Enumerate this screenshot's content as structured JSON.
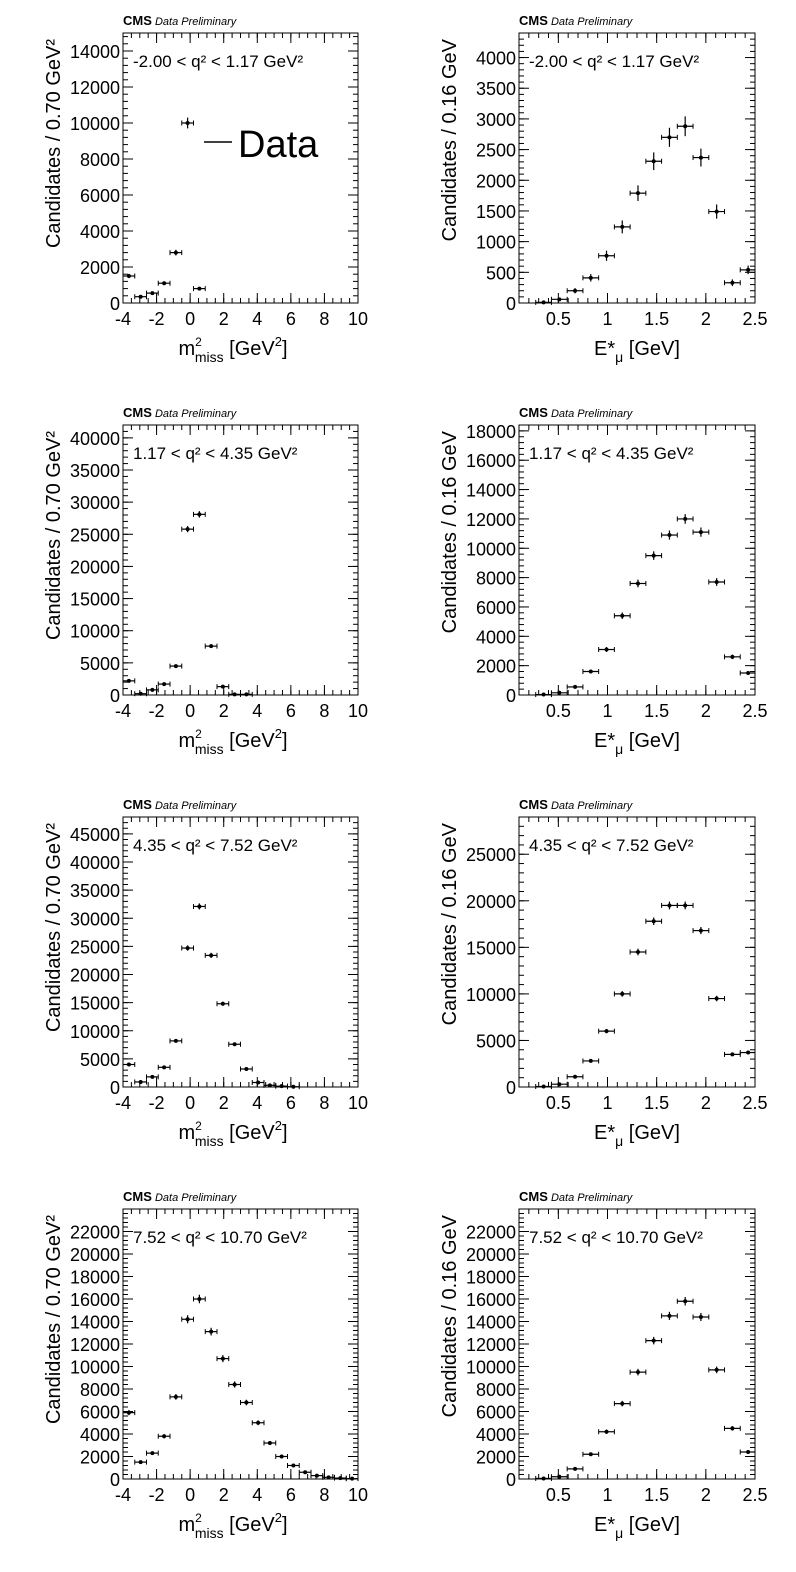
{
  "figure": {
    "experiment_label": "CMS",
    "status_label": "Data Preliminary",
    "legend_label": "Data"
  },
  "chart_data": [
    {
      "type": "scatter",
      "variable": "mmiss",
      "q2_text": "-2.00 <  q² < 1.17 GeV²",
      "xlabel_main": "m",
      "xlabel_sup": "2",
      "xlabel_sub": "miss",
      "xlabel_unit": " [GeV",
      "xlabel_unit_sup": "2",
      "xlabel_close": "]",
      "ylabel": "Candidates / 0.70 GeV²",
      "xlim": [
        -4,
        10
      ],
      "ylim": [
        0,
        15000
      ],
      "xticks": [
        -4,
        -2,
        0,
        2,
        4,
        6,
        8,
        10
      ],
      "yticks": [
        0,
        2000,
        4000,
        6000,
        8000,
        10000,
        12000,
        14000
      ],
      "bin_halfwidth": 0.35,
      "series": [
        {
          "name": "Data",
          "x": [
            -3.65,
            -2.95,
            -2.25,
            -1.55,
            -0.85,
            -0.15,
            0.55
          ],
          "y": [
            1500,
            350,
            550,
            1100,
            2800,
            10000,
            800
          ]
        }
      ]
    },
    {
      "type": "scatter",
      "variable": "emu",
      "q2_text": "-2.00 <  q² < 1.17 GeV²",
      "xlabel_main": "E*",
      "xlabel_sup": "",
      "xlabel_sub": "μ",
      "xlabel_unit": " [GeV]",
      "xlabel_unit_sup": "",
      "xlabel_close": "",
      "ylabel": "Candidates / 0.16 GeV",
      "xlim": [
        0.1,
        2.5
      ],
      "ylim": [
        0,
        4400
      ],
      "xticks": [
        0.5,
        1,
        1.5,
        2,
        2.5
      ],
      "yticks": [
        0,
        500,
        1000,
        1500,
        2000,
        2500,
        3000,
        3500,
        4000
      ],
      "bin_halfwidth": 0.08,
      "series": [
        {
          "name": "Data",
          "x": [
            0.35,
            0.51,
            0.67,
            0.83,
            0.99,
            1.15,
            1.31,
            1.47,
            1.63,
            1.79,
            1.95,
            2.11,
            2.27,
            2.43
          ],
          "y": [
            10,
            60,
            200,
            410,
            770,
            1240,
            1790,
            2310,
            2700,
            2880,
            2370,
            1490,
            330,
            540
          ]
        }
      ]
    },
    {
      "type": "scatter",
      "variable": "mmiss",
      "q2_text": "1.17 <  q² < 4.35 GeV²",
      "xlabel_main": "m",
      "xlabel_sup": "2",
      "xlabel_sub": "miss",
      "xlabel_unit": " [GeV",
      "xlabel_unit_sup": "2",
      "xlabel_close": "]",
      "ylabel": "Candidates / 0.70 GeV²",
      "xlim": [
        -4,
        10
      ],
      "ylim": [
        0,
        42000
      ],
      "xticks": [
        -4,
        -2,
        0,
        2,
        4,
        6,
        8,
        10
      ],
      "yticks": [
        0,
        5000,
        10000,
        15000,
        20000,
        25000,
        30000,
        35000,
        40000
      ],
      "bin_halfwidth": 0.35,
      "series": [
        {
          "name": "Data",
          "x": [
            -3.65,
            -2.95,
            -2.25,
            -1.55,
            -0.85,
            -0.15,
            0.55,
            1.25,
            1.95,
            2.65,
            3.35
          ],
          "y": [
            2200,
            200,
            800,
            1700,
            4500,
            25800,
            28100,
            7600,
            1300,
            100,
            100
          ]
        }
      ]
    },
    {
      "type": "scatter",
      "variable": "emu",
      "q2_text": "1.17 <  q² < 4.35 GeV²",
      "xlabel_main": "E*",
      "xlabel_sup": "",
      "xlabel_sub": "μ",
      "xlabel_unit": " [GeV]",
      "xlabel_unit_sup": "",
      "xlabel_close": "",
      "ylabel": "Candidates / 0.16 GeV",
      "xlim": [
        0.1,
        2.5
      ],
      "ylim": [
        0,
        18400
      ],
      "xticks": [
        0.5,
        1,
        1.5,
        2,
        2.5
      ],
      "yticks": [
        0,
        2000,
        4000,
        6000,
        8000,
        10000,
        12000,
        14000,
        16000,
        18000
      ],
      "bin_halfwidth": 0.08,
      "series": [
        {
          "name": "Data",
          "x": [
            0.35,
            0.51,
            0.67,
            0.83,
            0.99,
            1.15,
            1.31,
            1.47,
            1.63,
            1.79,
            1.95,
            2.11,
            2.27,
            2.43
          ],
          "y": [
            30,
            150,
            550,
            1600,
            3100,
            5400,
            7600,
            9500,
            10900,
            12000,
            11100,
            7700,
            2600,
            1500
          ]
        }
      ]
    },
    {
      "type": "scatter",
      "variable": "mmiss",
      "q2_text": "4.35 <  q² < 7.52 GeV²",
      "xlabel_main": "m",
      "xlabel_sup": "2",
      "xlabel_sub": "miss",
      "xlabel_unit": " [GeV",
      "xlabel_unit_sup": "2",
      "xlabel_close": "]",
      "ylabel": "Candidates / 0.70 GeV²",
      "xlim": [
        -4,
        10
      ],
      "ylim": [
        0,
        48000
      ],
      "xticks": [
        -4,
        -2,
        0,
        2,
        4,
        6,
        8,
        10
      ],
      "yticks": [
        0,
        5000,
        10000,
        15000,
        20000,
        25000,
        30000,
        35000,
        40000,
        45000
      ],
      "bin_halfwidth": 0.35,
      "series": [
        {
          "name": "Data",
          "x": [
            -3.65,
            -2.95,
            -2.25,
            -1.55,
            -0.85,
            -0.15,
            0.55,
            1.25,
            1.95,
            2.65,
            3.35,
            4.05,
            4.75,
            5.45,
            6.15
          ],
          "y": [
            4000,
            900,
            1800,
            3500,
            8200,
            24700,
            32100,
            23400,
            14800,
            7600,
            3200,
            800,
            300,
            150,
            50
          ]
        }
      ]
    },
    {
      "type": "scatter",
      "variable": "emu",
      "q2_text": "4.35 <  q² < 7.52 GeV²",
      "xlabel_main": "E*",
      "xlabel_sup": "",
      "xlabel_sub": "μ",
      "xlabel_unit": " [GeV]",
      "xlabel_unit_sup": "",
      "xlabel_close": "",
      "ylabel": "Candidates / 0.16 GeV",
      "xlim": [
        0.1,
        2.5
      ],
      "ylim": [
        0,
        29000
      ],
      "xticks": [
        0.5,
        1,
        1.5,
        2,
        2.5
      ],
      "yticks": [
        0,
        5000,
        10000,
        15000,
        20000,
        25000
      ],
      "bin_halfwidth": 0.08,
      "series": [
        {
          "name": "Data",
          "x": [
            0.35,
            0.51,
            0.67,
            0.83,
            0.99,
            1.15,
            1.31,
            1.47,
            1.63,
            1.79,
            1.95,
            2.11,
            2.27,
            2.43
          ],
          "y": [
            50,
            300,
            1100,
            2800,
            6000,
            10000,
            14500,
            17800,
            19500,
            19500,
            16800,
            9500,
            3500,
            3700
          ]
        }
      ]
    },
    {
      "type": "scatter",
      "variable": "mmiss",
      "q2_text": "7.52 <  q² < 10.70 GeV²",
      "xlabel_main": "m",
      "xlabel_sup": "2",
      "xlabel_sub": "miss",
      "xlabel_unit": " [GeV",
      "xlabel_unit_sup": "2",
      "xlabel_close": "]",
      "ylabel": "Candidates / 0.70 GeV²",
      "xlim": [
        -4,
        10
      ],
      "ylim": [
        0,
        24000
      ],
      "xticks": [
        -4,
        -2,
        0,
        2,
        4,
        6,
        8,
        10
      ],
      "yticks": [
        0,
        2000,
        4000,
        6000,
        8000,
        10000,
        12000,
        14000,
        16000,
        18000,
        20000,
        22000
      ],
      "bin_halfwidth": 0.35,
      "series": [
        {
          "name": "Data",
          "x": [
            -3.65,
            -2.95,
            -2.25,
            -1.55,
            -0.85,
            -0.15,
            0.55,
            1.25,
            1.95,
            2.65,
            3.35,
            4.05,
            4.75,
            5.45,
            6.15,
            6.85,
            7.55,
            8.25,
            8.95,
            9.65
          ],
          "y": [
            5900,
            1500,
            2300,
            3800,
            7300,
            14200,
            16000,
            13100,
            10700,
            8400,
            6800,
            5000,
            3200,
            2000,
            1200,
            600,
            300,
            150,
            80,
            30
          ]
        }
      ]
    },
    {
      "type": "scatter",
      "variable": "emu",
      "q2_text": "7.52 <  q² < 10.70 GeV²",
      "xlabel_main": "E*",
      "xlabel_sup": "",
      "xlabel_sub": "μ",
      "xlabel_unit": " [GeV]",
      "xlabel_unit_sup": "",
      "xlabel_close": "",
      "ylabel": "Candidates / 0.16 GeV",
      "xlim": [
        0.1,
        2.5
      ],
      "ylim": [
        0,
        24000
      ],
      "xticks": [
        0.5,
        1,
        1.5,
        2,
        2.5
      ],
      "yticks": [
        0,
        2000,
        4000,
        6000,
        8000,
        10000,
        12000,
        14000,
        16000,
        18000,
        20000,
        22000
      ],
      "bin_halfwidth": 0.08,
      "series": [
        {
          "name": "Data",
          "x": [
            0.35,
            0.51,
            0.67,
            0.83,
            0.99,
            1.15,
            1.31,
            1.47,
            1.63,
            1.79,
            1.95,
            2.11,
            2.27,
            2.43
          ],
          "y": [
            50,
            200,
            900,
            2200,
            4200,
            6700,
            9500,
            12300,
            14500,
            15800,
            14400,
            9700,
            4500,
            2400
          ]
        }
      ]
    }
  ]
}
